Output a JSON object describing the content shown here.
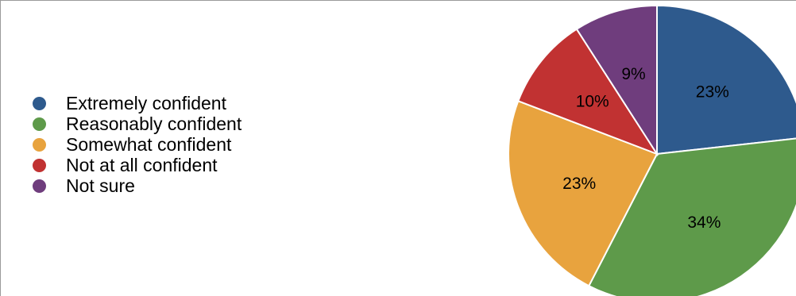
{
  "chart_data": {
    "type": "pie",
    "title": "",
    "legend_position": "left",
    "slices": [
      {
        "label": "Extremely confident",
        "value": 23,
        "display": "23%",
        "color": "#2e5a8d"
      },
      {
        "label": "Reasonably confident",
        "value": 34,
        "display": "34%",
        "color": "#5e9a4a"
      },
      {
        "label": "Somewhat confident",
        "value": 23,
        "display": "23%",
        "color": "#e8a33e"
      },
      {
        "label": "Not at all confident",
        "value": 10,
        "display": "10%",
        "color": "#c13232"
      },
      {
        "label": "Not sure",
        "value": 9,
        "display": "9%",
        "color": "#6f3d7d"
      }
    ]
  }
}
